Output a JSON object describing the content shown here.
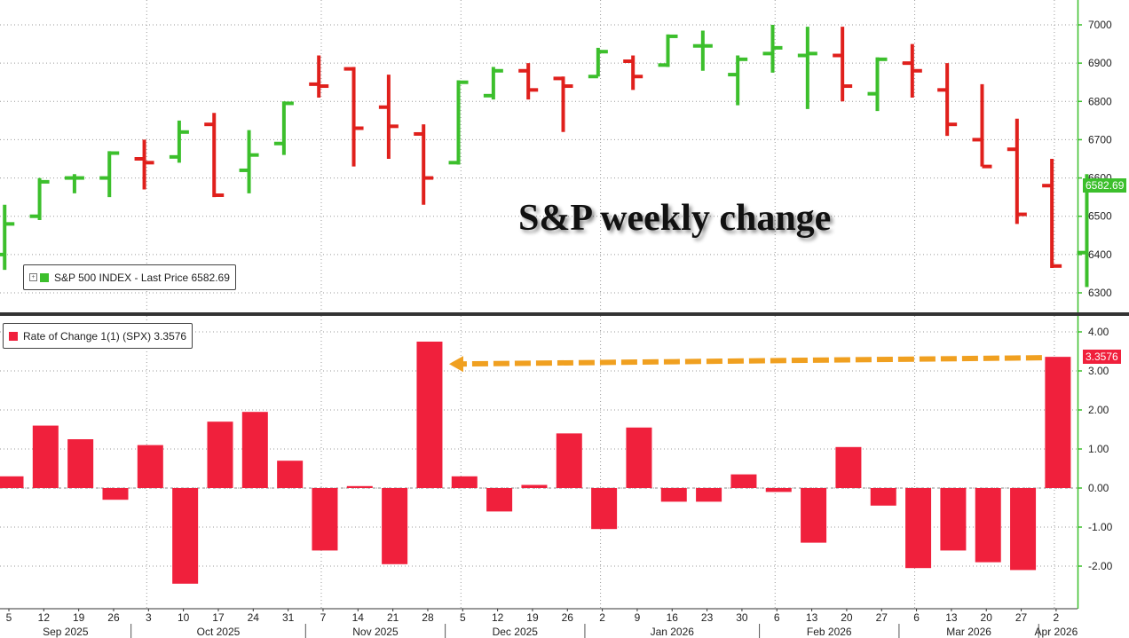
{
  "chart_data": [
    {
      "type": "ohlc",
      "legend": "S&P 500 INDEX - Last Price 6582.69",
      "last_value_label": "6582.69",
      "annotation": "S&P weekly change",
      "ylim": [
        6240,
        7040
      ],
      "yticks": [
        "6300",
        "6400",
        "6500",
        "6600",
        "6700",
        "6800",
        "6900",
        "7000"
      ],
      "colors": {
        "up": "#3cbf2c",
        "down": "#e0201c"
      },
      "bars": [
        {
          "o": 6400,
          "h": 6530,
          "l": 6360,
          "c": 6480
        },
        {
          "o": 6500,
          "h": 6600,
          "l": 6490,
          "c": 6590
        },
        {
          "o": 6600,
          "h": 6610,
          "l": 6560,
          "c": 6600
        },
        {
          "o": 6600,
          "h": 6670,
          "l": 6550,
          "c": 6665
        },
        {
          "o": 6650,
          "h": 6700,
          "l": 6570,
          "c": 6640
        },
        {
          "o": 6655,
          "h": 6750,
          "l": 6640,
          "c": 6720
        },
        {
          "o": 6740,
          "h": 6770,
          "l": 6550,
          "c": 6555
        },
        {
          "o": 6620,
          "h": 6725,
          "l": 6560,
          "c": 6660
        },
        {
          "o": 6690,
          "h": 6800,
          "l": 6660,
          "c": 6795
        },
        {
          "o": 6845,
          "h": 6920,
          "l": 6810,
          "c": 6840
        },
        {
          "o": 6885,
          "h": 6890,
          "l": 6630,
          "c": 6730
        },
        {
          "o": 6785,
          "h": 6870,
          "l": 6650,
          "c": 6735
        },
        {
          "o": 6715,
          "h": 6740,
          "l": 6530,
          "c": 6600
        },
        {
          "o": 6640,
          "h": 6855,
          "l": 6635,
          "c": 6850
        },
        {
          "o": 6815,
          "h": 6890,
          "l": 6805,
          "c": 6880
        },
        {
          "o": 6880,
          "h": 6900,
          "l": 6805,
          "c": 6830
        },
        {
          "o": 6860,
          "h": 6865,
          "l": 6720,
          "c": 6840
        },
        {
          "o": 6865,
          "h": 6940,
          "l": 6865,
          "c": 6930
        },
        {
          "o": 6905,
          "h": 6920,
          "l": 6830,
          "c": 6865
        },
        {
          "o": 6895,
          "h": 6975,
          "l": 6890,
          "c": 6970
        },
        {
          "o": 6945,
          "h": 6985,
          "l": 6880,
          "c": 6945
        },
        {
          "o": 6870,
          "h": 6920,
          "l": 6790,
          "c": 6910
        },
        {
          "o": 6925,
          "h": 7000,
          "l": 6875,
          "c": 6940
        },
        {
          "o": 6920,
          "h": 6995,
          "l": 6780,
          "c": 6925
        },
        {
          "o": 6920,
          "h": 6995,
          "l": 6800,
          "c": 6840
        },
        {
          "o": 6820,
          "h": 6915,
          "l": 6775,
          "c": 6910
        },
        {
          "o": 6900,
          "h": 6950,
          "l": 6810,
          "c": 6880
        },
        {
          "o": 6830,
          "h": 6900,
          "l": 6710,
          "c": 6740
        },
        {
          "o": 6700,
          "h": 6845,
          "l": 6630,
          "c": 6630
        },
        {
          "o": 6675,
          "h": 6755,
          "l": 6480,
          "c": 6505
        },
        {
          "o": 6580,
          "h": 6650,
          "l": 6365,
          "c": 6370
        },
        {
          "o": 6405,
          "h": 6610,
          "l": 6315,
          "c": 6583
        }
      ]
    },
    {
      "type": "bar",
      "legend": "Rate of Change 1(1) (SPX) 3.3576",
      "last_value_label": "3.3576",
      "ylim": [
        -3,
        4.3
      ],
      "yticks": [
        "-2.00",
        "-1.00",
        "0.00",
        "1.00",
        "2.00",
        "3.00",
        "4.00"
      ],
      "color": "#f0203c",
      "arrow_color": "#f0a020",
      "values": [
        0.3,
        1.6,
        1.25,
        -0.3,
        1.1,
        -2.45,
        1.7,
        1.95,
        0.7,
        -1.6,
        0.05,
        -1.95,
        3.75,
        0.3,
        -0.6,
        0.08,
        1.4,
        -1.05,
        1.55,
        -0.35,
        -0.35,
        0.35,
        -0.1,
        -1.4,
        1.05,
        -0.45,
        -2.05,
        -1.6,
        -1.9,
        -2.1,
        3.36
      ]
    }
  ],
  "x_axis": {
    "day_labels": [
      "5",
      "12",
      "19",
      "26",
      "3",
      "10",
      "17",
      "24",
      "31",
      "7",
      "14",
      "21",
      "28",
      "5",
      "12",
      "19",
      "26",
      "2",
      "9",
      "16",
      "23",
      "30",
      "6",
      "13",
      "20",
      "27",
      "6",
      "13",
      "20",
      "27",
      "2"
    ],
    "months": [
      {
        "label": "Sep 2025",
        "start": 0,
        "end": 3
      },
      {
        "label": "Oct 2025",
        "start": 4,
        "end": 8
      },
      {
        "label": "Nov 2025",
        "start": 9,
        "end": 12
      },
      {
        "label": "Dec 2025",
        "start": 13,
        "end": 16
      },
      {
        "label": "Jan 2026",
        "start": 17,
        "end": 21
      },
      {
        "label": "Feb 2026",
        "start": 22,
        "end": 25
      },
      {
        "label": "Mar 2026",
        "start": 26,
        "end": 29
      },
      {
        "label": "Apr 2026",
        "start": 30,
        "end": 30
      }
    ]
  }
}
